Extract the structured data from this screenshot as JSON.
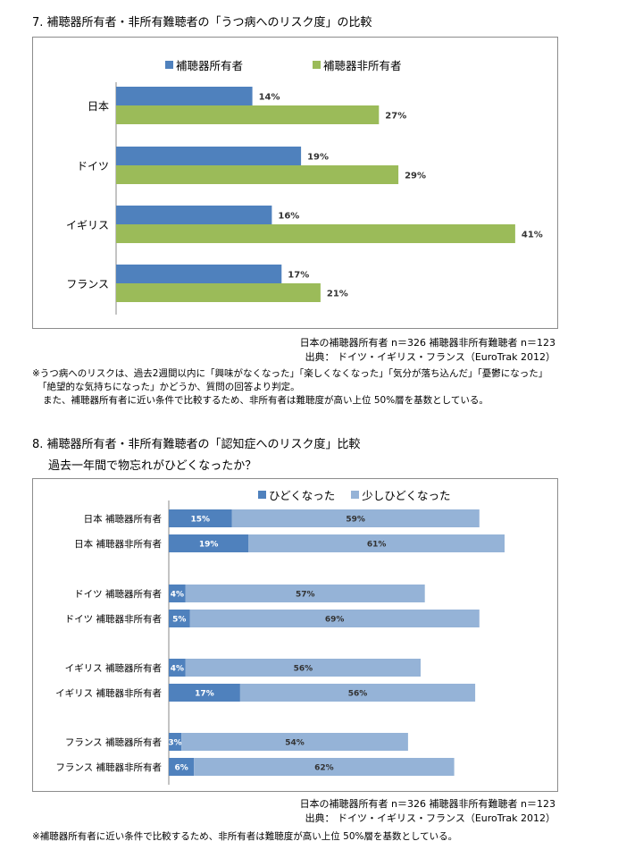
{
  "section7": {
    "title": "7. 補聴器所有者・非所有難聴者の「うつ病へのリスク度」の比較",
    "legend": [
      "補聴器所有者",
      "補聴器非所有者"
    ],
    "sample_note": "日本の補聴器所有者 n＝326 補聴器非所有難聴者 n＝123",
    "source_note": "出典： ドイツ・イギリス・フランス（EuroTrak 2012）",
    "footnote_lines": [
      "※うつ病へのリスクは、過去2週間以内に「興味がなくなった」「楽しくなくなった」「気分が落ち込んだ」「憂鬱になった」",
      "「絶望的な気持ちになった」かどうか、質問の回答より判定。",
      "また、補聴器所有者に近い条件で比較するため、非所有者は難聴度が高い上位 50%層を基数としている。"
    ]
  },
  "section8": {
    "title": "8. 補聴器所有者・非所有難聴者の「認知症へのリスク度」比較",
    "subtitle": "過去一年間で物忘れがひどくなったか？",
    "legend": [
      "ひどくなった",
      "少しひどくなった"
    ],
    "sample_note": "日本の補聴器所有者 n＝326 補聴器非所有難聴者 n＝123",
    "source_note": "出典： ドイツ・イギリス・フランス（EuroTrak 2012）",
    "footnote": "※補聴器所有者に近い条件で比較するため、非所有者は難聴度が高い上位 50%層を基数としている。"
  },
  "chart_data": [
    {
      "type": "bar",
      "orientation": "horizontal",
      "categories": [
        "日本",
        "ドイツ",
        "イギリス",
        "フランス"
      ],
      "series": [
        {
          "name": "補聴器所有者",
          "values": [
            14,
            19,
            16,
            17
          ],
          "labels": [
            "14%",
            "19%",
            "16%",
            "17%"
          ]
        },
        {
          "name": "補聴器非所有者",
          "values": [
            27,
            29,
            41,
            21
          ],
          "labels": [
            "27%",
            "29%",
            "41%",
            "21%"
          ]
        }
      ],
      "xlim": [
        0,
        45
      ],
      "colors": [
        "#4f81bd",
        "#9bbb59"
      ],
      "legend_position": "top",
      "grid": false
    },
    {
      "type": "bar",
      "orientation": "horizontal",
      "stacked": true,
      "categories": [
        "日本 補聴器所有者",
        "日本 補聴器非所有者",
        "ドイツ 補聴器所有者",
        "ドイツ 補聴器非所有者",
        "イギリス 補聴器所有者",
        "イギリス 補聴器非所有者",
        "フランス 補聴器所有者",
        "フランス 補聴器非所有者"
      ],
      "series": [
        {
          "name": "ひどくなった",
          "values": [
            15,
            19,
            4,
            5,
            4,
            17,
            3,
            6
          ],
          "labels": [
            "15%",
            "19%",
            "4%",
            "5%",
            "4%",
            "17%",
            "3%",
            "6%"
          ]
        },
        {
          "name": "少しひどくなった",
          "values": [
            59,
            61,
            57,
            69,
            56,
            56,
            54,
            62
          ],
          "labels": [
            "59%",
            "61%",
            "57%",
            "69%",
            "56%",
            "56%",
            "54%",
            "62%"
          ]
        }
      ],
      "xlim": [
        0,
        85
      ],
      "colors": [
        "#4f81bd",
        "#95b3d7"
      ],
      "legend_position": "top",
      "grid": false
    }
  ]
}
